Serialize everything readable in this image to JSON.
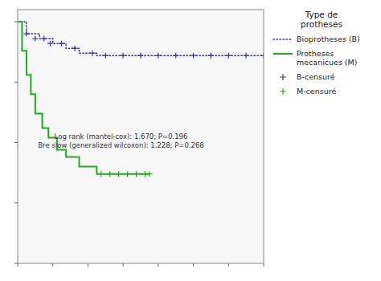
{
  "chart_data": {
    "type": "line",
    "annotation": "Log rank (mantel-cox): 1.670; P=0.196\nBre slow (generalized wilcoxon): 1.228; P=0.268",
    "legend_title": "Type de\nprotheses",
    "legend": "right",
    "tick_labels": false,
    "grid": false,
    "xlim": [
      0,
      28
    ],
    "ylim": [
      0,
      1.05
    ],
    "xticks": [
      0,
      4,
      8,
      12,
      16,
      20,
      24,
      28
    ],
    "yticks": [
      0.0,
      0.25,
      0.5,
      0.75,
      1.0
    ],
    "series": [
      {
        "name": "Bioprotheses (B)",
        "type": "line",
        "color": "#3a3aaa",
        "line_style": "dotted",
        "x": [
          0.0,
          1.0,
          1.0,
          2.5,
          2.5,
          4.0,
          4.0,
          5.5,
          5.5,
          7.0,
          7.0,
          9.0,
          9.0,
          28.0
        ],
        "values": [
          1.0,
          1.0,
          0.95,
          0.95,
          0.93,
          0.93,
          0.91,
          0.91,
          0.89,
          0.89,
          0.87,
          0.87,
          0.86,
          0.86
        ]
      },
      {
        "name": "Protheses\nmecanicues (M)",
        "type": "line",
        "color": "#22aa22",
        "line_style": "solid",
        "x": [
          0.0,
          0.5,
          0.5,
          1.0,
          1.0,
          1.5,
          1.5,
          2.0,
          2.0,
          2.8,
          2.8,
          3.5,
          3.5,
          4.5,
          4.5,
          5.5,
          5.5,
          7.0,
          7.0,
          9.0,
          9.0,
          15.0
        ],
        "values": [
          1.0,
          1.0,
          0.88,
          0.88,
          0.78,
          0.78,
          0.7,
          0.7,
          0.62,
          0.62,
          0.56,
          0.56,
          0.52,
          0.52,
          0.47,
          0.47,
          0.44,
          0.44,
          0.4,
          0.4,
          0.37,
          0.37
        ]
      },
      {
        "name": "B-censuré",
        "type": "scatter",
        "color": "#3a3aaa",
        "marker": "plus",
        "x": [
          1.0,
          2.0,
          3.0,
          3.7,
          5.0,
          6.5,
          8.5,
          10.0,
          12.0,
          14.0,
          16.0,
          18.0,
          20.0,
          22.0,
          24.0,
          26.0,
          28.0
        ],
        "values": [
          0.95,
          0.93,
          0.93,
          0.91,
          0.91,
          0.89,
          0.87,
          0.86,
          0.86,
          0.86,
          0.86,
          0.86,
          0.86,
          0.86,
          0.86,
          0.86,
          0.86
        ]
      },
      {
        "name": "M-censuré",
        "type": "scatter",
        "color": "#22aa22",
        "marker": "plus",
        "x": [
          9.5,
          10.5,
          11.5,
          12.5,
          13.5,
          14.5,
          15.0
        ],
        "values": [
          0.37,
          0.37,
          0.37,
          0.37,
          0.37,
          0.37,
          0.37
        ]
      }
    ]
  }
}
